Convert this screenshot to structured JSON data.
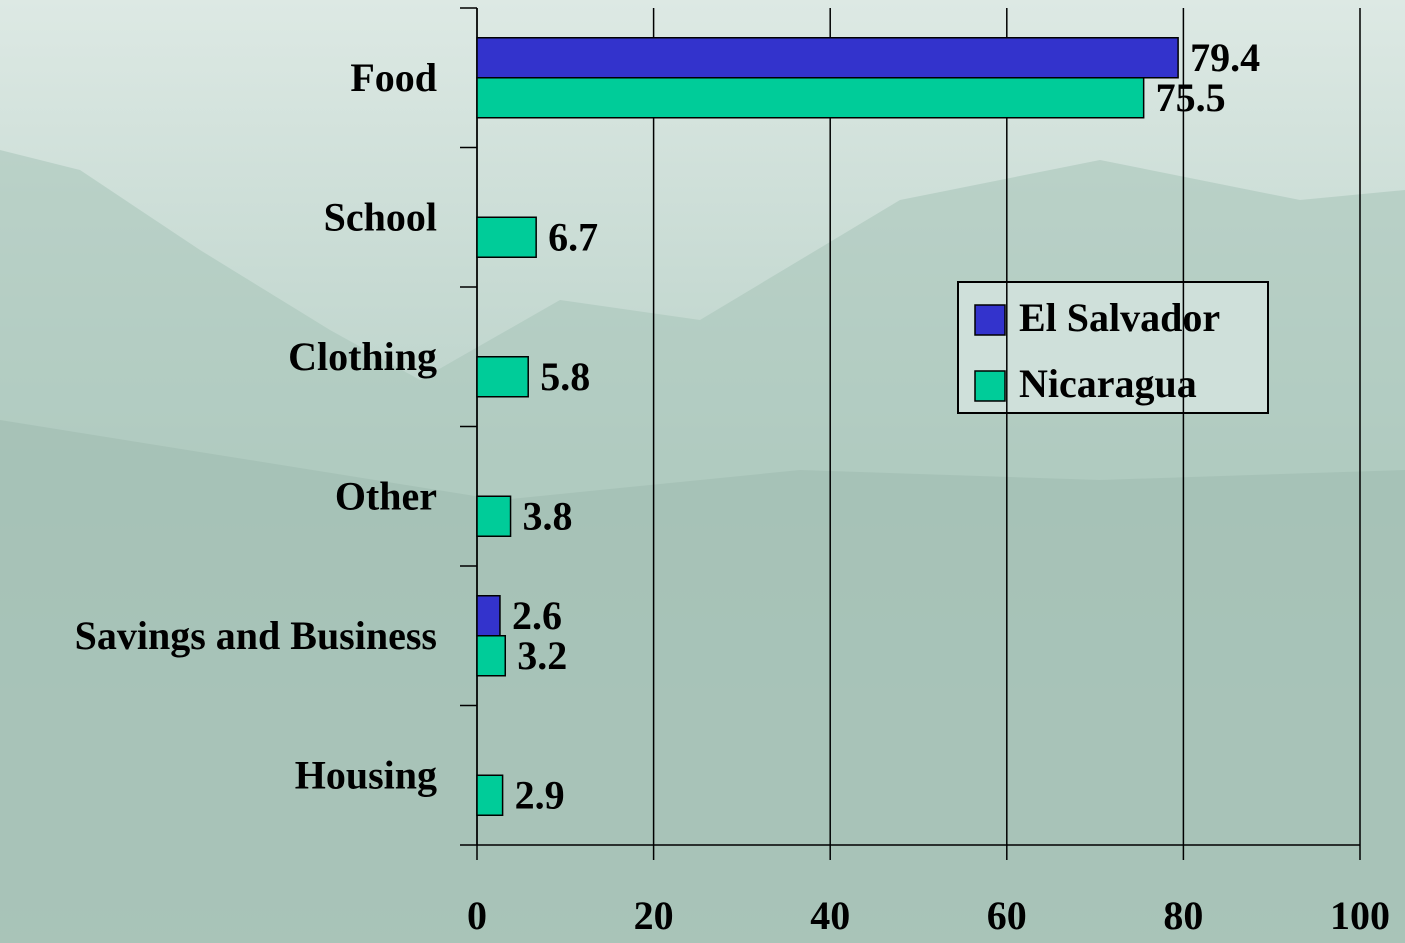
{
  "chart_data": {
    "type": "bar",
    "orientation": "horizontal",
    "categories": [
      "Food",
      "School",
      "Clothing",
      "Other",
      "Savings and Business",
      "Housing"
    ],
    "series": [
      {
        "name": "El Salvador",
        "color": "#3333cc",
        "values": [
          79.4,
          null,
          null,
          null,
          2.6,
          null
        ]
      },
      {
        "name": "Nicaragua",
        "color": "#00cc99",
        "values": [
          75.5,
          6.7,
          5.8,
          3.8,
          3.2,
          2.9
        ]
      }
    ],
    "xlim": [
      0,
      100
    ],
    "xticks": [
      0,
      20,
      40,
      60,
      80,
      100
    ],
    "grid": true,
    "legend": "right"
  }
}
